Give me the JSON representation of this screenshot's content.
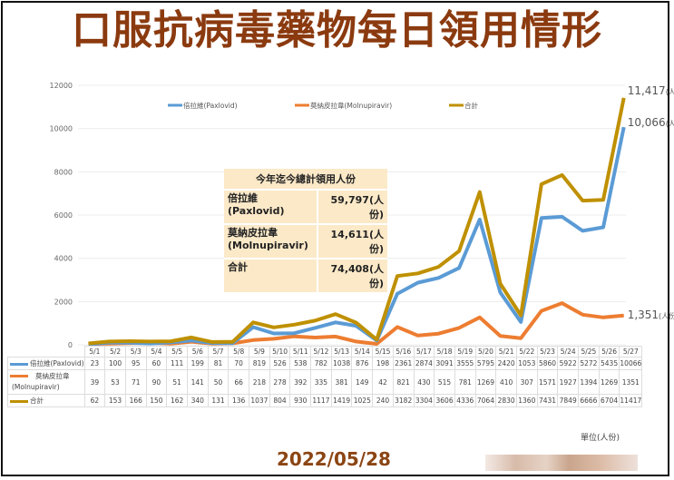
{
  "title": "口服抗病毒藥物每日領用情形",
  "date": "2022/05/28",
  "unit_label": "單位(人份)",
  "summary_box": {
    "header": "今年迄今總計領用人份",
    "rows": [
      {
        "label_line1": "倍拉維",
        "label_line2": "(Paxlovid)",
        "value": "59,797(人份)"
      },
      {
        "label_line1": "莫納皮拉韋",
        "label_line2": "(Molnupiravir)",
        "value": "14,611(人份)"
      },
      {
        "label_line1": "合計",
        "label_line2": "",
        "value": "74,408(人份)"
      }
    ]
  },
  "end_labels": {
    "total": {
      "value": "11,417",
      "unit": "(人份)"
    },
    "paxlovid": {
      "value": "10,066",
      "unit": "(人份)"
    },
    "molnupiravir": {
      "value": "1,351",
      "unit": "(人份)"
    }
  },
  "legend": [
    {
      "label": "倍拉維(Paxlovid)",
      "color": "#5b9bd5"
    },
    {
      "label": "莫納皮拉韋(Molnupiravir)",
      "color": "#ed7d31"
    },
    {
      "label": "合計",
      "color": "#bf9000"
    }
  ],
  "table": {
    "row_labels": [
      "倍拉維(Paxlovid)",
      "莫納皮拉韋",
      "(Molnupiravir)",
      "合計"
    ]
  },
  "chart_data": {
    "type": "line",
    "title": "口服抗病毒藥物每日領用情形",
    "xlabel": "",
    "ylabel": "單位(人份)",
    "ylim": [
      0,
      12000
    ],
    "yticks": [
      0,
      2000,
      4000,
      6000,
      8000,
      10000,
      12000
    ],
    "grid": true,
    "legend_position": "top",
    "categories": [
      "5/1",
      "5/2",
      "5/3",
      "5/4",
      "5/5",
      "5/6",
      "5/7",
      "5/8",
      "5/9",
      "5/10",
      "5/11",
      "5/12",
      "5/13",
      "5/14",
      "5/15",
      "5/16",
      "5/17",
      "5/18",
      "5/19",
      "5/20",
      "5/21",
      "5/22",
      "5/23",
      "5/24",
      "5/25",
      "5/26",
      "5/27"
    ],
    "series": [
      {
        "name": "倍拉維(Paxlovid)",
        "color": "#5b9bd5",
        "values": [
          23,
          100,
          95,
          60,
          111,
          199,
          81,
          70,
          819,
          526,
          538,
          782,
          1038,
          876,
          198,
          2361,
          2874,
          3091,
          3555,
          5795,
          2420,
          1053,
          5860,
          5922,
          5272,
          5435,
          10066
        ]
      },
      {
        "name": "莫納皮拉韋(Molnupiravir)",
        "color": "#ed7d31",
        "values": [
          39,
          53,
          71,
          90,
          51,
          141,
          50,
          66,
          218,
          278,
          392,
          335,
          381,
          149,
          42,
          821,
          430,
          515,
          781,
          1269,
          410,
          307,
          1571,
          1927,
          1394,
          1269,
          1351
        ]
      },
      {
        "name": "合計",
        "color": "#bf9000",
        "values": [
          62,
          153,
          166,
          150,
          162,
          340,
          131,
          136,
          1037,
          804,
          930,
          1117,
          1419,
          1025,
          240,
          3182,
          3304,
          3606,
          4336,
          7064,
          2830,
          1360,
          7431,
          7849,
          6666,
          6704,
          11417
        ]
      }
    ],
    "annotations": [
      "11,417(人份)",
      "10,066(人份)",
      "1,351(人份)"
    ],
    "summary": {
      "Paxlovid": 59797,
      "Molnupiravir": 14611,
      "total": 74408
    }
  }
}
